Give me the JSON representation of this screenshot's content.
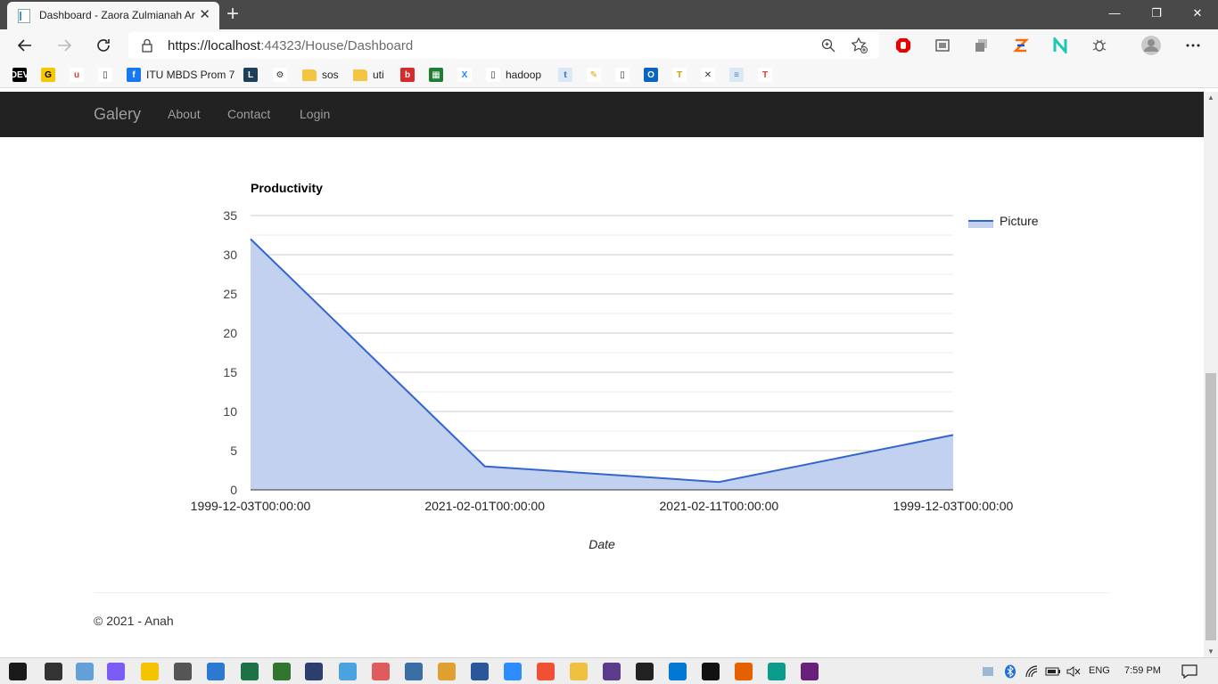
{
  "browser": {
    "tab_title": "Dashboard - Zaora Zulmianah Ar",
    "tab_close": "✕",
    "new_tab": "+",
    "url_host": "https://localhost",
    "url_port_path": ":44323/House/Dashboard",
    "window_controls": [
      "—",
      "❐",
      "✕"
    ],
    "extensions": [
      "adblock-icon",
      "screenshot-icon",
      "collections-icon",
      "transfer-icon",
      "n-icon",
      "bug-icon",
      "profile-icon",
      "more-icon"
    ]
  },
  "bookmarks": [
    {
      "label": "",
      "icon": "DEV",
      "color": "#000000",
      "fg": "#ffffff"
    },
    {
      "label": "",
      "icon": "G",
      "color": "#f5c800",
      "fg": "#000000"
    },
    {
      "label": "",
      "icon": "u",
      "color": "#ffffff",
      "fg": "#e53935"
    },
    {
      "label": "",
      "icon": "▯",
      "color": "#ffffff",
      "fg": "#333333"
    },
    {
      "label": "ITU MBDS Prom 7",
      "icon": "f",
      "color": "#1877f2",
      "fg": "#ffffff"
    },
    {
      "label": "",
      "icon": "L",
      "color": "#1c3f5c",
      "fg": "#ffffff"
    },
    {
      "label": "",
      "icon": "⚙",
      "color": "#ffffff",
      "fg": "#333333"
    },
    {
      "label": "sos",
      "icon": "",
      "color": "#f4c542",
      "fg": "#f4c542"
    },
    {
      "label": "uti",
      "icon": "",
      "color": "#f4c542",
      "fg": "#f4c542"
    },
    {
      "label": "",
      "icon": "b",
      "color": "#d62b2b",
      "fg": "#ffffff"
    },
    {
      "label": "",
      "icon": "▦",
      "color": "#1e7e34",
      "fg": "#ffffff"
    },
    {
      "label": "",
      "icon": "X",
      "color": "#ffffff",
      "fg": "#2684ff"
    },
    {
      "label": "hadoop",
      "icon": "▯",
      "color": "#ffffff",
      "fg": "#333333"
    },
    {
      "label": "",
      "icon": "t",
      "color": "#dbe9f7",
      "fg": "#2a6ebb"
    },
    {
      "label": "",
      "icon": "✎",
      "color": "#ffffff",
      "fg": "#e6a100"
    },
    {
      "label": "",
      "icon": "▯",
      "color": "#ffffff",
      "fg": "#333333"
    },
    {
      "label": "",
      "icon": "O",
      "color": "#0a64c2",
      "fg": "#ffffff"
    },
    {
      "label": "",
      "icon": "T",
      "color": "#ffffff",
      "fg": "#c9a100"
    },
    {
      "label": "",
      "icon": "✕",
      "color": "#ffffff",
      "fg": "#333333"
    },
    {
      "label": "",
      "icon": "≡",
      "color": "#dbe9f7",
      "fg": "#5a7fa8"
    },
    {
      "label": "",
      "icon": "T",
      "color": "#ffffff",
      "fg": "#e53935"
    }
  ],
  "site": {
    "brand": "Galery",
    "nav": [
      "About",
      "Contact",
      "Login"
    ],
    "footer": "© 2021 - Anah"
  },
  "chart_data": {
    "type": "area",
    "title": "Productivity",
    "xlabel": "Date",
    "ylabel": "",
    "categories": [
      "1999-12-03T00:00:00",
      "2021-02-01T00:00:00",
      "2021-02-11T00:00:00",
      "1999-12-03T00:00:00"
    ],
    "series": [
      {
        "name": "Picture",
        "values": [
          32,
          3,
          1,
          7
        ]
      }
    ],
    "ylim": [
      0,
      35
    ],
    "yticks": [
      0,
      5,
      10,
      15,
      20,
      25,
      30,
      35
    ],
    "grid": true,
    "legend": "right",
    "line_color": "#3366cc",
    "fill_color": "#c3d1f0"
  },
  "taskbar": {
    "language": "ENG",
    "time": "7:59 PM",
    "apps": [
      {
        "name": "windows-icon",
        "color": "#1a1a1a"
      },
      {
        "name": "store-icon",
        "color": "#333333"
      },
      {
        "name": "paint-icon",
        "color": "#64a0d8"
      },
      {
        "name": "messenger-icon",
        "color": "#7b5cf5"
      },
      {
        "name": "media-icon",
        "color": "#f5c400"
      },
      {
        "name": "calculator-icon",
        "color": "#555555"
      },
      {
        "name": "remote-icon",
        "color": "#2b79d0"
      },
      {
        "name": "excel-icon",
        "color": "#1e7145"
      },
      {
        "name": "project-icon",
        "color": "#31752f"
      },
      {
        "name": "virtualbox-icon",
        "color": "#2c3e6d"
      },
      {
        "name": "tools-icon",
        "color": "#4aa3df"
      },
      {
        "name": "snipping-icon",
        "color": "#e05c5c"
      },
      {
        "name": "python-icon",
        "color": "#3b6ea5"
      },
      {
        "name": "pen-icon",
        "color": "#e0a030"
      },
      {
        "name": "word-icon",
        "color": "#2b579a"
      },
      {
        "name": "zoom-icon",
        "color": "#2d8cff"
      },
      {
        "name": "git-icon",
        "color": "#f05033"
      },
      {
        "name": "explorer-icon",
        "color": "#f0c040"
      },
      {
        "name": "eclipse-icon",
        "color": "#5a3b8c"
      },
      {
        "name": "terminal-icon",
        "color": "#222222"
      },
      {
        "name": "vscode-icon",
        "color": "#0078d4"
      },
      {
        "name": "intellij-icon",
        "color": "#111111"
      },
      {
        "name": "firefox-icon",
        "color": "#e66000"
      },
      {
        "name": "edge-icon",
        "color": "#0c9c8c"
      },
      {
        "name": "visualstudio-icon",
        "color": "#68217a"
      }
    ]
  }
}
